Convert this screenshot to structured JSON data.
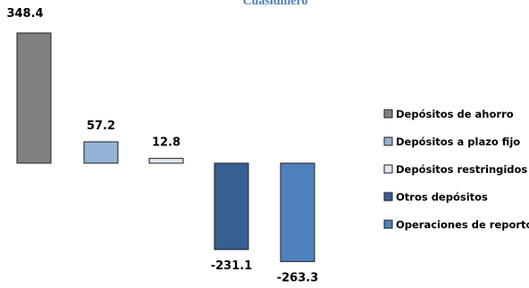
{
  "chart_data": {
    "type": "bar",
    "title": "Cuasidinero",
    "categories": [
      "Depósitos de ahorro",
      "Depósitos a plazo fijo",
      "Depósitos restringidos",
      "Otros depósitos",
      "Operaciones de reporto"
    ],
    "values": [
      348.4,
      57.2,
      12.8,
      -231.1,
      -263.3
    ],
    "value_labels": [
      "348.4",
      "57.2",
      "12.8",
      "-231.1",
      "-263.3"
    ],
    "colors": [
      "#808080",
      "#95B3D7",
      "#DCE6F2",
      "#376092",
      "#4F81BD"
    ],
    "title_color": "#4F81BD",
    "legend_position": "right",
    "grid": false
  }
}
